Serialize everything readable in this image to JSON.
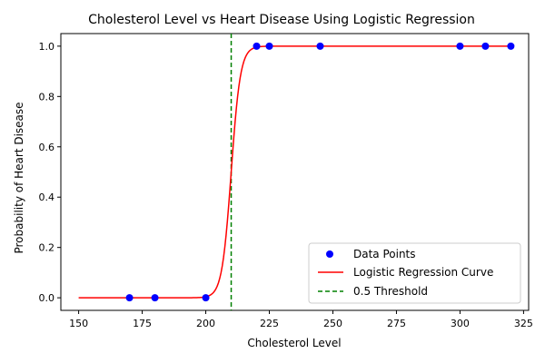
{
  "chart_data": {
    "type": "scatter",
    "title": "Cholesterol Level vs Heart Disease Using Logistic Regression",
    "xlabel": "Cholesterol Level",
    "ylabel": "Probability of Heart Disease",
    "xlim": [
      143,
      327
    ],
    "ylim": [
      -0.05,
      1.05
    ],
    "x_ticks": [
      150,
      175,
      200,
      225,
      250,
      275,
      300,
      325
    ],
    "y_ticks": [
      0.0,
      0.2,
      0.4,
      0.6,
      0.8,
      1.0
    ],
    "x_tick_labels": [
      "150",
      "175",
      "200",
      "225",
      "250",
      "275",
      "300",
      "325"
    ],
    "y_tick_labels": [
      "0.0",
      "0.2",
      "0.4",
      "0.6",
      "0.8",
      "1.0"
    ],
    "grid": false,
    "legend_position": "bottom-right",
    "series": [
      {
        "name": "Data Points",
        "kind": "scatter",
        "color": "#0000ff",
        "x": [
          170,
          180,
          200,
          220,
          225,
          245,
          300,
          310,
          320
        ],
        "y": [
          0,
          0,
          0,
          1,
          1,
          1,
          1,
          1,
          1
        ]
      },
      {
        "name": "Logistic Regression Curve",
        "kind": "line",
        "color": "#ff0000",
        "x_range": [
          150,
          320
        ],
        "midpoint": 210,
        "steepness": 0.55
      },
      {
        "name": "0.5 Threshold",
        "kind": "vline",
        "color": "#008000",
        "linestyle": "dashed",
        "x": 210
      }
    ]
  }
}
